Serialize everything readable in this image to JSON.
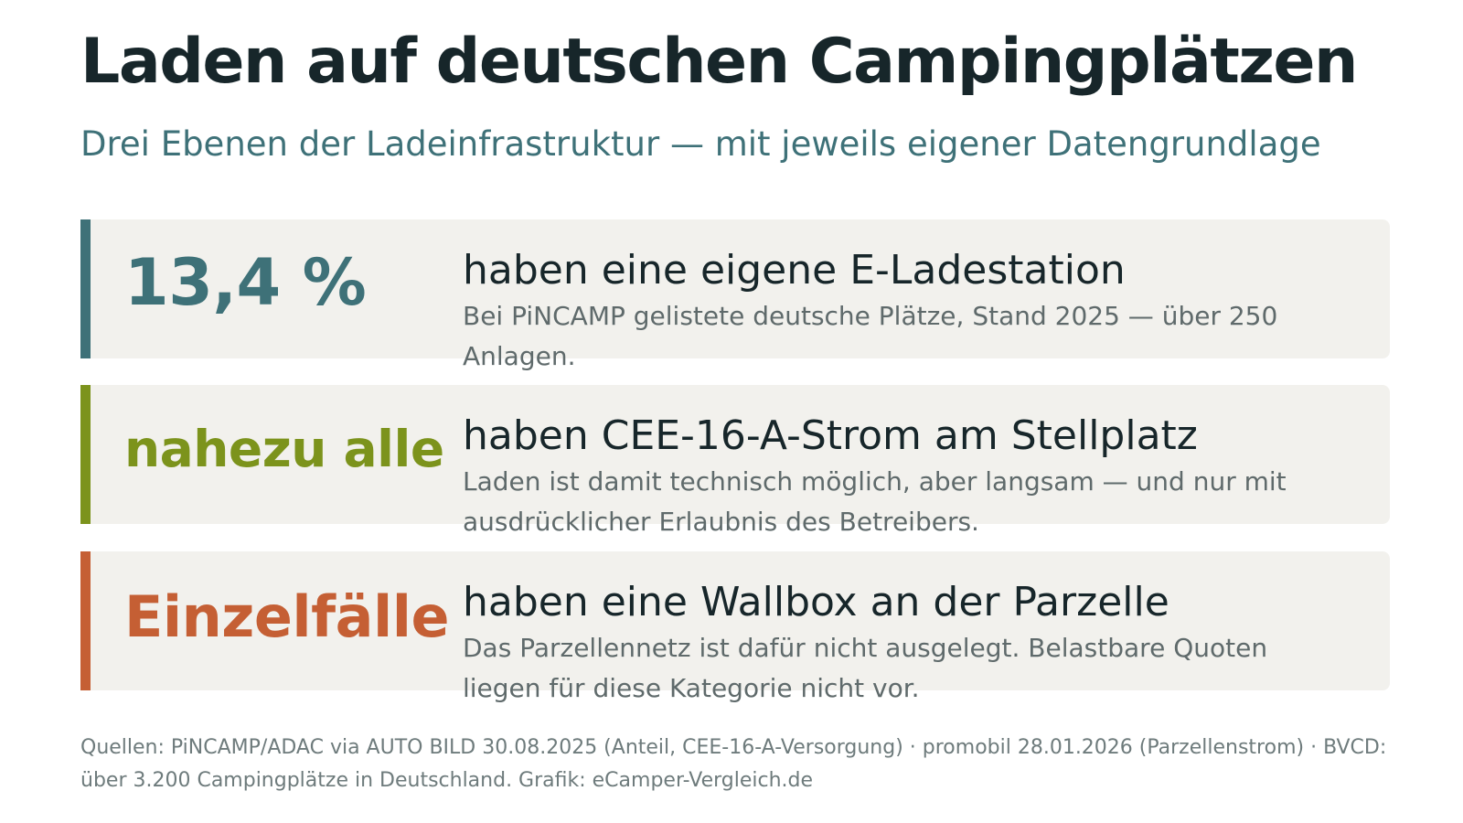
{
  "header": {
    "title": "Laden auf deutschen Campingplätzen",
    "subtitle": "Drei Ebenen der Ladeinfrastruktur — mit jeweils eigener Datengrundlage"
  },
  "cards": [
    {
      "stat": "13,4 %",
      "headline": "haben eine eigene E-Ladestation",
      "detail": "Bei PiNCAMP gelistete deutsche Plätze, Stand 2025 — über 250 Anlagen.",
      "accent_color": "#3e7178"
    },
    {
      "stat": "nahezu alle",
      "headline": "haben CEE-16-A-Strom am Stellplatz",
      "detail": "Laden ist damit technisch möglich, aber langsam — und nur mit ausdrücklicher Erlaubnis des Betreibers.",
      "accent_color": "#7c931c"
    },
    {
      "stat": "Einzelfälle",
      "headline": "haben eine Wallbox an der Parzelle",
      "detail": "Das Parzellennetz ist dafür nicht ausgelegt. Belastbare Quoten liegen für diese Kategorie nicht vor.",
      "accent_color": "#c55f34"
    }
  ],
  "footer": {
    "sources": "Quellen: PiNCAMP/ADAC via AUTO BILD 30.08.2025 (Anteil, CEE-16-A-Versorgung) · promobil 28.01.2026 (Parzellenstrom) · BVCD: über 3.200 Campingplätze in Deutschland. Grafik: eCamper-Vergleich.de"
  }
}
